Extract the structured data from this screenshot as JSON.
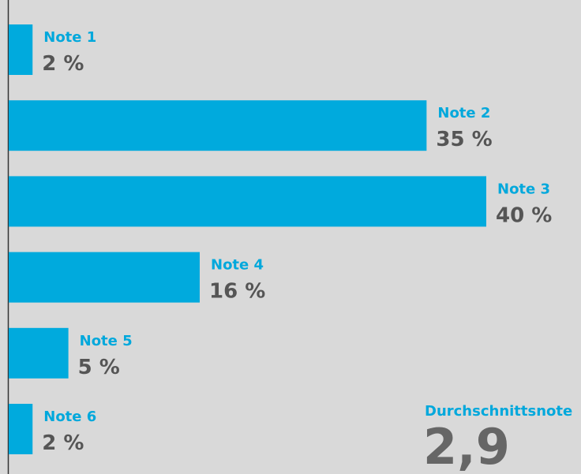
{
  "chart_data": {
    "type": "bar",
    "orientation": "horizontal",
    "categories": [
      "Note 1",
      "Note 2",
      "Note 3",
      "Note 4",
      "Note 5",
      "Note 6"
    ],
    "values": [
      2,
      35,
      40,
      16,
      5,
      2
    ],
    "value_labels": [
      "2 %",
      "35 %",
      "40 %",
      "16 %",
      "5 %",
      "2 %"
    ],
    "color": "#00aadd",
    "annotation": {
      "label": "Durchschnittsnote",
      "value": "2,9"
    }
  }
}
